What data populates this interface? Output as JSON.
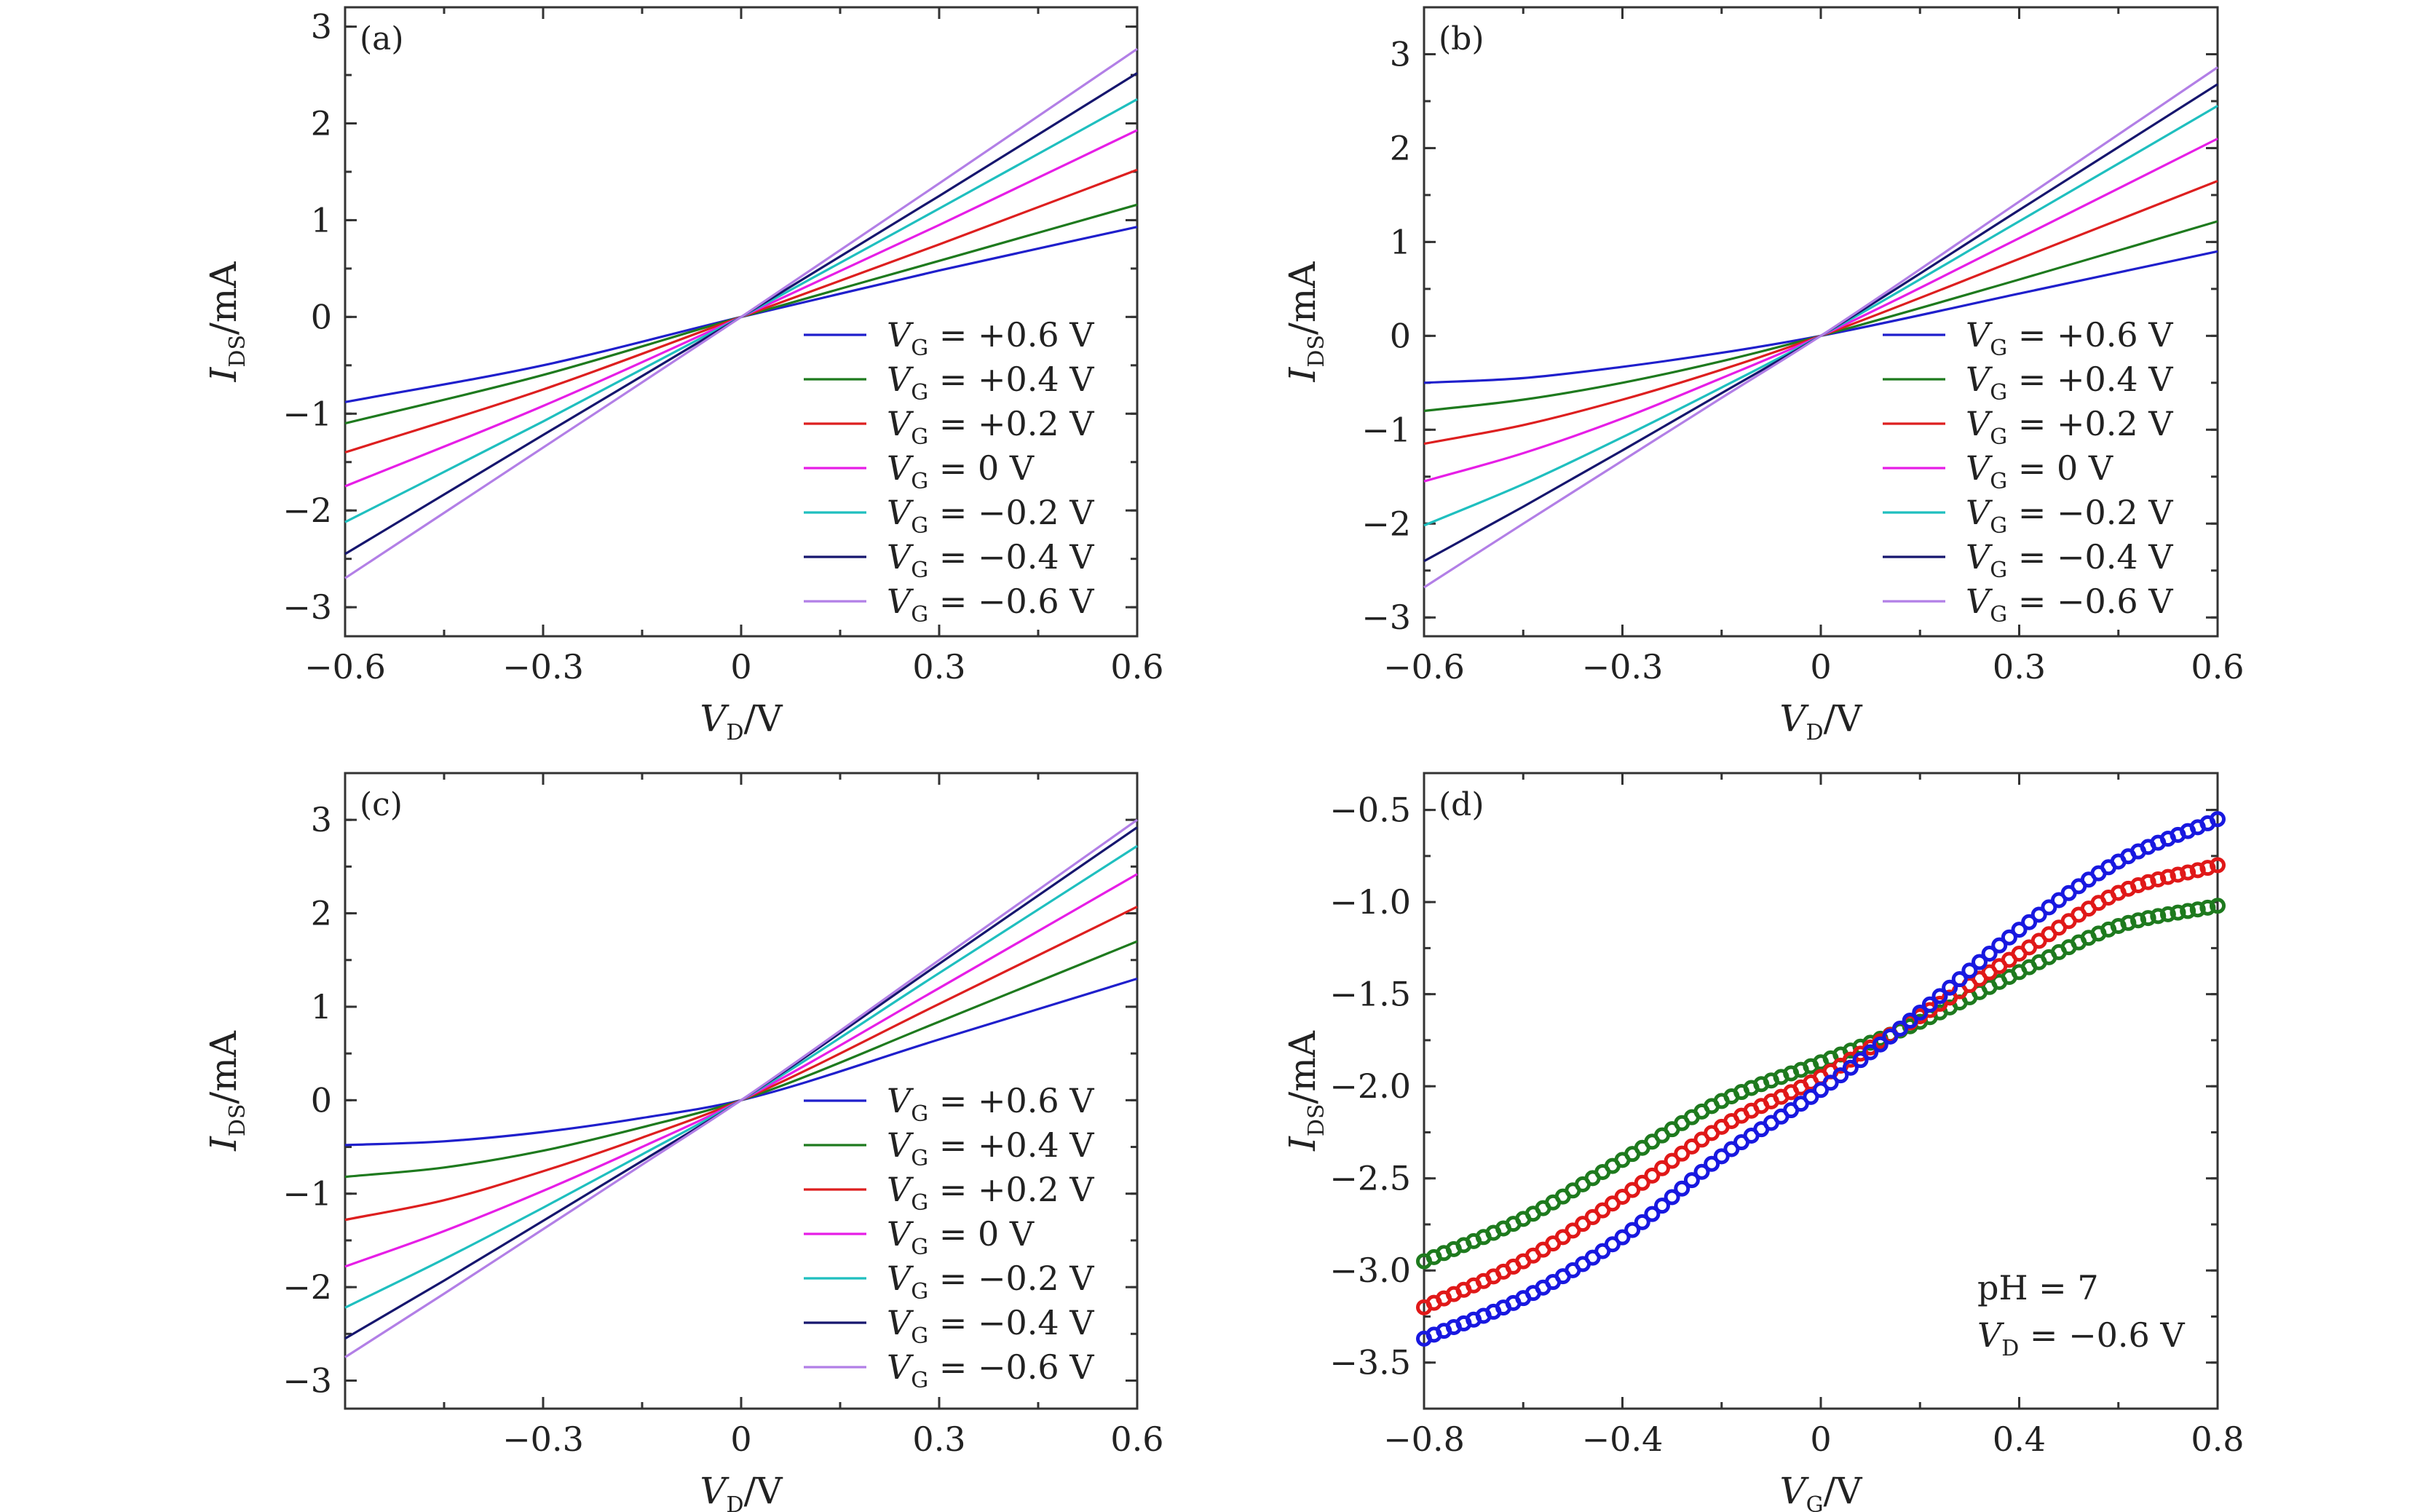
{
  "figure_id": "figure",
  "chart_data": [
    {
      "type": "line",
      "panel_label": "(a)",
      "xlabel": {
        "main": "V",
        "sub": "D",
        "unit": "/V"
      },
      "ylabel": {
        "main": "I",
        "sub": "DS",
        "unit": "/mA"
      },
      "xlim": [
        -0.6,
        0.6
      ],
      "ylim": [
        -3.3,
        3.2
      ],
      "xticks": [
        -0.6,
        -0.3,
        0,
        0.3,
        0.6
      ],
      "xtick_labels": [
        "−0.6",
        "−0.3",
        "0",
        "0.3",
        "0.6"
      ],
      "yticks": [
        -3,
        -2,
        -1,
        0,
        1,
        2,
        3
      ],
      "ytick_labels": [
        "−3",
        "−2",
        "−1",
        "0",
        "1",
        "2",
        "3"
      ],
      "legend_position": "bottom-right",
      "series": [
        {
          "name": "V_G = +0.6 V",
          "legend": {
            "main": "V",
            "sub": "G",
            "rest": " = +0.6 V"
          },
          "color": "#1f1fcc",
          "x": [
            -0.6,
            -0.3,
            0,
            0.3,
            0.6
          ],
          "y": [
            -0.88,
            -0.5,
            0,
            0.48,
            0.93
          ]
        },
        {
          "name": "V_G = +0.4 V",
          "legend": {
            "main": "V",
            "sub": "G",
            "rest": " = +0.4 V"
          },
          "color": "#1e7a1e",
          "x": [
            -0.6,
            -0.3,
            0,
            0.3,
            0.6
          ],
          "y": [
            -1.1,
            -0.6,
            0,
            0.58,
            1.16
          ]
        },
        {
          "name": "V_G = +0.2 V",
          "legend": {
            "main": "V",
            "sub": "G",
            "rest": " = +0.2 V"
          },
          "color": "#dd1f1f",
          "x": [
            -0.6,
            -0.3,
            0,
            0.3,
            0.6
          ],
          "y": [
            -1.4,
            -0.75,
            0,
            0.75,
            1.52
          ]
        },
        {
          "name": "V_G = 0 V",
          "legend": {
            "main": "V",
            "sub": "G",
            "rest": " = 0 V"
          },
          "color": "#e61ee6",
          "x": [
            -0.6,
            -0.3,
            0,
            0.3,
            0.6
          ],
          "y": [
            -1.75,
            -0.92,
            0,
            0.95,
            1.93
          ]
        },
        {
          "name": "V_G = −0.2 V",
          "legend": {
            "main": "V",
            "sub": "G",
            "rest": " = −0.2 V"
          },
          "color": "#1fbfbf",
          "x": [
            -0.6,
            -0.3,
            0,
            0.3,
            0.6
          ],
          "y": [
            -2.12,
            -1.08,
            0,
            1.12,
            2.25
          ]
        },
        {
          "name": "V_G = −0.4 V",
          "legend": {
            "main": "V",
            "sub": "G",
            "rest": " = −0.4 V"
          },
          "color": "#16166e",
          "x": [
            -0.6,
            -0.3,
            0,
            0.3,
            0.6
          ],
          "y": [
            -2.45,
            -1.22,
            0,
            1.25,
            2.52
          ]
        },
        {
          "name": "V_G = −0.6 V",
          "legend": {
            "main": "V",
            "sub": "G",
            "rest": " = −0.6 V"
          },
          "color": "#b27fe6",
          "x": [
            -0.6,
            -0.3,
            0,
            0.3,
            0.6
          ],
          "y": [
            -2.7,
            -1.35,
            0,
            1.38,
            2.77
          ]
        }
      ]
    },
    {
      "type": "line",
      "panel_label": "(b)",
      "xlabel": {
        "main": "V",
        "sub": "D",
        "unit": "/V"
      },
      "ylabel": {
        "main": "I",
        "sub": "DS",
        "unit": "/mA"
      },
      "xlim": [
        -0.6,
        0.6
      ],
      "ylim": [
        -3.2,
        3.5
      ],
      "xticks": [
        -0.6,
        -0.3,
        0,
        0.3,
        0.6
      ],
      "xtick_labels": [
        "−0.6",
        "−0.3",
        "0",
        "0.3",
        "0.6"
      ],
      "yticks": [
        -3,
        -2,
        -1,
        0,
        1,
        2,
        3
      ],
      "ytick_labels": [
        "−3",
        "−2",
        "−1",
        "0",
        "1",
        "2",
        "3"
      ],
      "legend_position": "bottom-right",
      "series": [
        {
          "name": "V_G = +0.6 V",
          "legend": {
            "main": "V",
            "sub": "G",
            "rest": " = +0.6 V"
          },
          "color": "#1f1fcc",
          "x": [
            -0.6,
            -0.45,
            -0.3,
            -0.15,
            0,
            0.3,
            0.6
          ],
          "y": [
            -0.5,
            -0.45,
            -0.33,
            -0.18,
            0,
            0.45,
            0.9
          ]
        },
        {
          "name": "V_G = +0.4 V",
          "legend": {
            "main": "V",
            "sub": "G",
            "rest": " = +0.4 V"
          },
          "color": "#1e7a1e",
          "x": [
            -0.6,
            -0.45,
            -0.3,
            -0.15,
            0,
            0.3,
            0.6
          ],
          "y": [
            -0.8,
            -0.68,
            -0.5,
            -0.27,
            0,
            0.6,
            1.22
          ]
        },
        {
          "name": "V_G = +0.2 V",
          "legend": {
            "main": "V",
            "sub": "G",
            "rest": " = +0.2 V"
          },
          "color": "#dd1f1f",
          "x": [
            -0.6,
            -0.45,
            -0.3,
            -0.15,
            0,
            0.3,
            0.6
          ],
          "y": [
            -1.15,
            -0.95,
            -0.68,
            -0.36,
            0,
            0.82,
            1.65
          ]
        },
        {
          "name": "V_G = 0 V",
          "legend": {
            "main": "V",
            "sub": "G",
            "rest": " = 0 V"
          },
          "color": "#e61ee6",
          "x": [
            -0.6,
            -0.45,
            -0.3,
            -0.15,
            0,
            0.3,
            0.6
          ],
          "y": [
            -1.55,
            -1.25,
            -0.88,
            -0.45,
            0,
            1.04,
            2.1
          ]
        },
        {
          "name": "V_G = −0.2 V",
          "legend": {
            "main": "V",
            "sub": "G",
            "rest": " = −0.2 V"
          },
          "color": "#1fbfbf",
          "x": [
            -0.6,
            -0.45,
            -0.3,
            -0.15,
            0,
            0.3,
            0.6
          ],
          "y": [
            -2.02,
            -1.58,
            -1.08,
            -0.55,
            0,
            1.22,
            2.45
          ]
        },
        {
          "name": "V_G = −0.4 V",
          "legend": {
            "main": "V",
            "sub": "G",
            "rest": " = −0.4 V"
          },
          "color": "#16166e",
          "x": [
            -0.6,
            -0.45,
            -0.3,
            -0.15,
            0,
            0.3,
            0.6
          ],
          "y": [
            -2.4,
            -1.82,
            -1.22,
            -0.61,
            0,
            1.34,
            2.68
          ]
        },
        {
          "name": "V_G = −0.6 V",
          "legend": {
            "main": "V",
            "sub": "G",
            "rest": " = −0.6 V"
          },
          "color": "#b27fe6",
          "x": [
            -0.6,
            -0.45,
            -0.3,
            -0.15,
            0,
            0.3,
            0.6
          ],
          "y": [
            -2.68,
            -2.0,
            -1.33,
            -0.66,
            0,
            1.43,
            2.86
          ]
        }
      ]
    },
    {
      "type": "line",
      "panel_label": "(c)",
      "xlabel": {
        "main": "V",
        "sub": "D",
        "unit": "/V"
      },
      "ylabel": {
        "main": "I",
        "sub": "DS",
        "unit": "/mA"
      },
      "xlim": [
        -0.6,
        0.6
      ],
      "ylim": [
        -3.3,
        3.5
      ],
      "xticks": [
        -0.3,
        0,
        0.3,
        0.6
      ],
      "xtick_labels": [
        "−0.3",
        "0",
        "0.3",
        "0.6"
      ],
      "yticks": [
        -3,
        -2,
        -1,
        0,
        1,
        2,
        3
      ],
      "ytick_labels": [
        "−3",
        "−2",
        "−1",
        "0",
        "1",
        "2",
        "3"
      ],
      "legend_position": "bottom-right",
      "series": [
        {
          "name": "V_G = +0.6 V",
          "legend": {
            "main": "V",
            "sub": "G",
            "rest": " = +0.6 V"
          },
          "color": "#1f1fcc",
          "x": [
            -0.6,
            -0.45,
            -0.3,
            -0.15,
            0,
            0.3,
            0.6
          ],
          "y": [
            -0.48,
            -0.44,
            -0.34,
            -0.19,
            0,
            0.65,
            1.3
          ]
        },
        {
          "name": "V_G = +0.4 V",
          "legend": {
            "main": "V",
            "sub": "G",
            "rest": " = +0.4 V"
          },
          "color": "#1e7a1e",
          "x": [
            -0.6,
            -0.45,
            -0.3,
            -0.15,
            0,
            0.3,
            0.6
          ],
          "y": [
            -0.82,
            -0.72,
            -0.54,
            -0.29,
            0,
            0.84,
            1.7
          ]
        },
        {
          "name": "V_G = +0.2 V",
          "legend": {
            "main": "V",
            "sub": "G",
            "rest": " = +0.2 V"
          },
          "color": "#dd1f1f",
          "x": [
            -0.6,
            -0.45,
            -0.3,
            -0.15,
            0,
            0.3,
            0.6
          ],
          "y": [
            -1.28,
            -1.07,
            -0.76,
            -0.4,
            0,
            1.03,
            2.07
          ]
        },
        {
          "name": "V_G = 0 V",
          "legend": {
            "main": "V",
            "sub": "G",
            "rest": " = 0 V"
          },
          "color": "#e61ee6",
          "x": [
            -0.6,
            -0.45,
            -0.3,
            -0.15,
            0,
            0.3,
            0.6
          ],
          "y": [
            -1.78,
            -1.4,
            -0.97,
            -0.5,
            0,
            1.2,
            2.42
          ]
        },
        {
          "name": "V_G = −0.2 V",
          "legend": {
            "main": "V",
            "sub": "G",
            "rest": " = −0.2 V"
          },
          "color": "#1fbfbf",
          "x": [
            -0.6,
            -0.45,
            -0.3,
            -0.15,
            0,
            0.3,
            0.6
          ],
          "y": [
            -2.22,
            -1.7,
            -1.15,
            -0.58,
            0,
            1.36,
            2.72
          ]
        },
        {
          "name": "V_G = −0.4 V",
          "legend": {
            "main": "V",
            "sub": "G",
            "rest": " = −0.4 V"
          },
          "color": "#16166e",
          "x": [
            -0.6,
            -0.45,
            -0.3,
            -0.15,
            0,
            0.3,
            0.6
          ],
          "y": [
            -2.55,
            -1.93,
            -1.29,
            -0.65,
            0,
            1.46,
            2.92
          ]
        },
        {
          "name": "V_G = −0.6 V",
          "legend": {
            "main": "V",
            "sub": "G",
            "rest": " = −0.6 V"
          },
          "color": "#b27fe6",
          "x": [
            -0.6,
            -0.45,
            -0.3,
            -0.15,
            0,
            0.3,
            0.6
          ],
          "y": [
            -2.75,
            -2.07,
            -1.38,
            -0.69,
            0,
            1.5,
            3.0
          ]
        }
      ]
    },
    {
      "type": "scatter",
      "panel_label": "(d)",
      "xlabel": {
        "main": "V",
        "sub": "G",
        "unit": "/V"
      },
      "ylabel": {
        "main": "I",
        "sub": "DS",
        "unit": "/mA"
      },
      "xlim": [
        -0.8,
        0.8
      ],
      "ylim": [
        -3.75,
        -0.3
      ],
      "xticks": [
        -0.8,
        -0.4,
        0,
        0.4,
        0.8
      ],
      "xtick_labels": [
        "−0.8",
        "−0.4",
        "0",
        "0.4",
        "0.8"
      ],
      "yticks": [
        -3.5,
        -3.0,
        -2.5,
        -2.0,
        -1.5,
        -1.0,
        -0.5
      ],
      "ytick_labels": [
        "−3.5",
        "−3.0",
        "−2.5",
        "−2.0",
        "−1.5",
        "−1.0",
        "−0.5"
      ],
      "annotations": [
        {
          "text": "pH = 7"
        },
        {
          "main": "V",
          "sub": "D",
          "rest": " = −0.6 V"
        }
      ],
      "series": [
        {
          "name": "green",
          "color": "#1e7a1e",
          "x": [
            -0.8,
            -0.6,
            -0.4,
            -0.2,
            0,
            0.2,
            0.4,
            0.6,
            0.8
          ],
          "y": [
            -2.95,
            -2.72,
            -2.4,
            -2.08,
            -1.87,
            -1.65,
            -1.38,
            -1.13,
            -1.02
          ]
        },
        {
          "name": "red",
          "color": "#e01818",
          "x": [
            -0.8,
            -0.6,
            -0.4,
            -0.2,
            0,
            0.2,
            0.4,
            0.6,
            0.8
          ],
          "y": [
            -3.2,
            -2.95,
            -2.6,
            -2.22,
            -1.95,
            -1.62,
            -1.28,
            -0.95,
            -0.8
          ]
        },
        {
          "name": "blue",
          "color": "#1818e0",
          "x": [
            -0.8,
            -0.6,
            -0.4,
            -0.2,
            0,
            0.2,
            0.4,
            0.6,
            0.8
          ],
          "y": [
            -3.37,
            -3.15,
            -2.82,
            -2.38,
            -2.02,
            -1.6,
            -1.15,
            -0.78,
            -0.55
          ]
        }
      ]
    }
  ]
}
